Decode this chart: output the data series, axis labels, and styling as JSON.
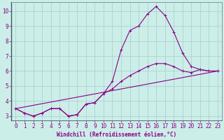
{
  "xlabel": "Windchill (Refroidissement éolien,°C)",
  "bg_color": "#cceee8",
  "grid_color": "#aacccc",
  "line_color": "#880088",
  "xlim": [
    -0.5,
    23.5
  ],
  "ylim": [
    2.7,
    10.6
  ],
  "yticks": [
    3,
    4,
    5,
    6,
    7,
    8,
    9,
    10
  ],
  "xticks": [
    0,
    1,
    2,
    3,
    4,
    5,
    6,
    7,
    8,
    9,
    10,
    11,
    12,
    13,
    14,
    15,
    16,
    17,
    18,
    19,
    20,
    21,
    22,
    23
  ],
  "line1_x": [
    0,
    1,
    2,
    3,
    4,
    5,
    6,
    7,
    8,
    9,
    10,
    11,
    12,
    13,
    14,
    15,
    16,
    17,
    18,
    19,
    20,
    21,
    22,
    23
  ],
  "line1_y": [
    3.5,
    3.2,
    3.0,
    3.2,
    3.5,
    3.5,
    3.0,
    3.1,
    3.8,
    3.9,
    4.5,
    5.3,
    7.4,
    8.7,
    9.0,
    9.8,
    10.3,
    9.7,
    8.6,
    7.2,
    6.3,
    6.1,
    6.0,
    6.0
  ],
  "line2_x": [
    0,
    1,
    2,
    3,
    4,
    5,
    6,
    7,
    8,
    9,
    10,
    11,
    12,
    13,
    14,
    15,
    16,
    17,
    18,
    19,
    20,
    21,
    22,
    23
  ],
  "line2_y": [
    3.5,
    3.2,
    3.0,
    3.2,
    3.5,
    3.5,
    3.0,
    3.1,
    3.8,
    3.9,
    4.5,
    4.8,
    5.3,
    5.7,
    6.0,
    6.3,
    6.5,
    6.5,
    6.3,
    6.0,
    5.9,
    6.1,
    6.0,
    6.0
  ],
  "line3_x": [
    0,
    23
  ],
  "line3_y": [
    3.5,
    6.0
  ],
  "tick_fontsize": 5.5,
  "xlabel_fontsize": 5.5
}
